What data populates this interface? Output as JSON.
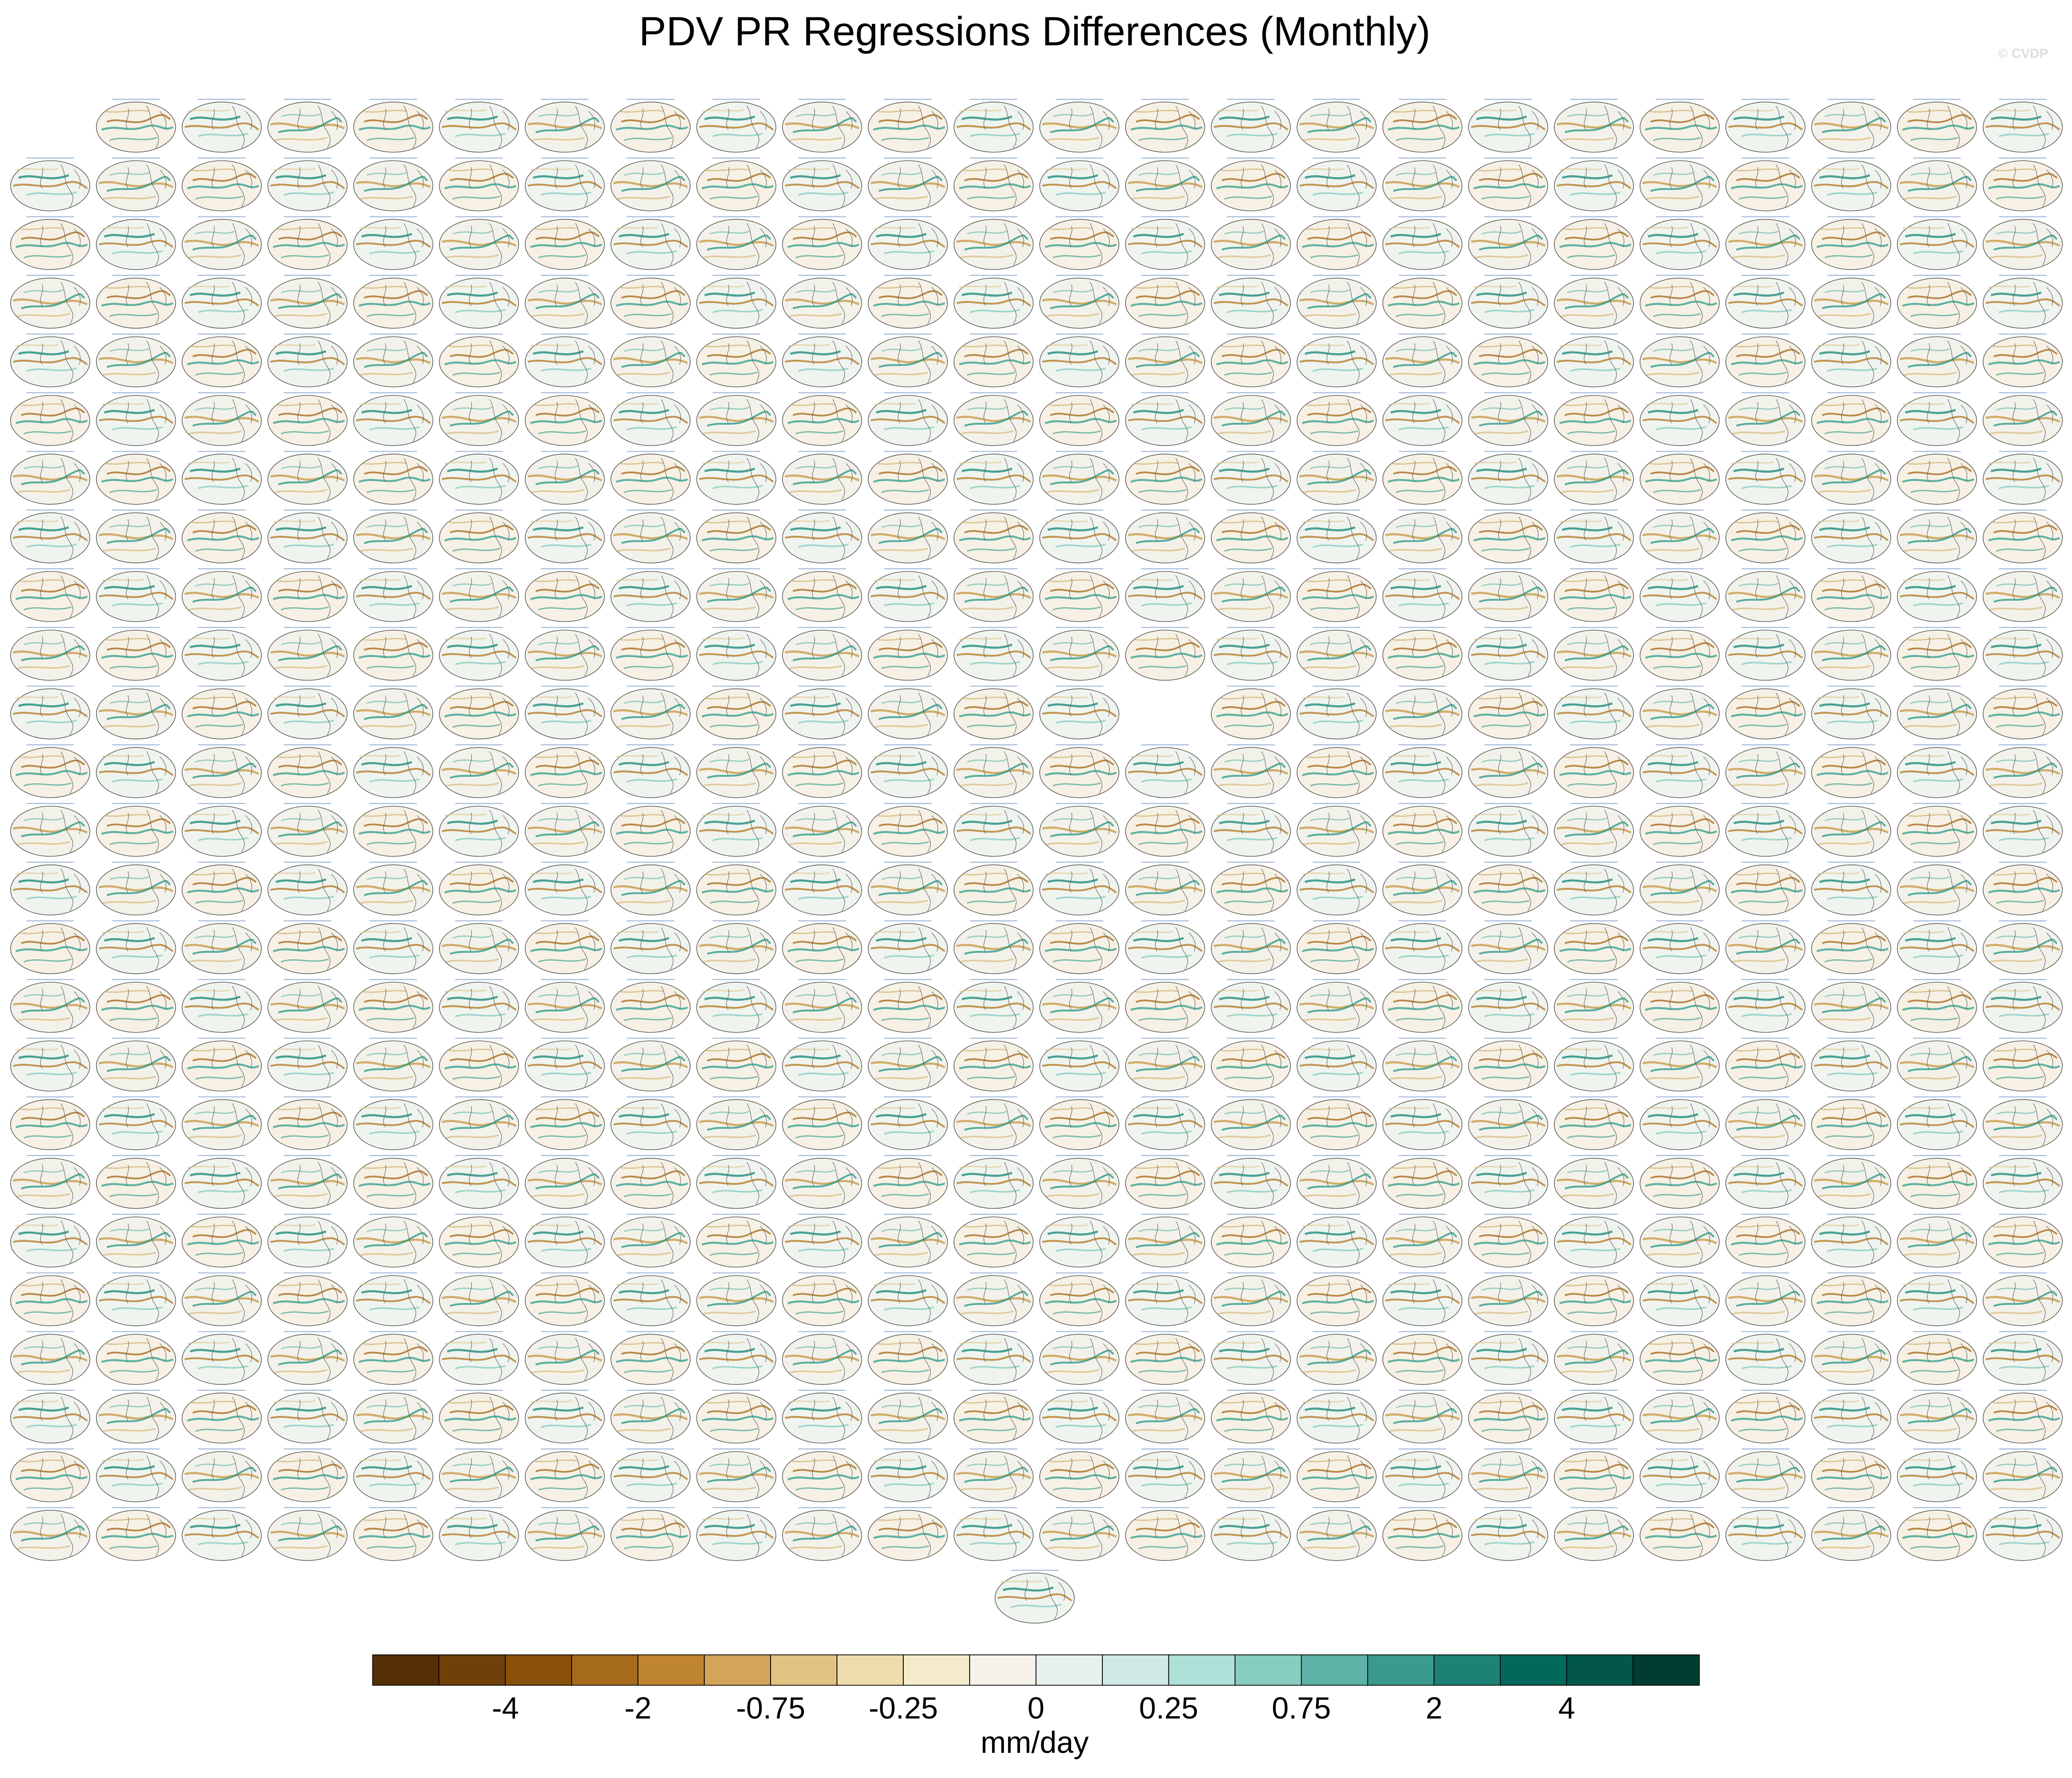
{
  "chart_data": {
    "type": "map-grid",
    "title": "PDV PR Regressions Differences (Monthly)",
    "credit": "© CVDP",
    "colorbar": {
      "colors": [
        "#553006",
        "#70400a",
        "#8a5109",
        "#a66a1d",
        "#c08530",
        "#d3a45a",
        "#e2c283",
        "#efdcad",
        "#f5ebcb",
        "#f6f2ea",
        "#e8f1ef",
        "#cfe9e4",
        "#ade0d6",
        "#87cdbf",
        "#5db3a6",
        "#3b9a8e",
        "#1e8175",
        "#01695c",
        "#02564a",
        "#003c30"
      ],
      "ticks": [
        -4,
        -2,
        -0.75,
        -0.25,
        0,
        0.25,
        0.75,
        2,
        4
      ],
      "label": "mm/day"
    }
  }
}
